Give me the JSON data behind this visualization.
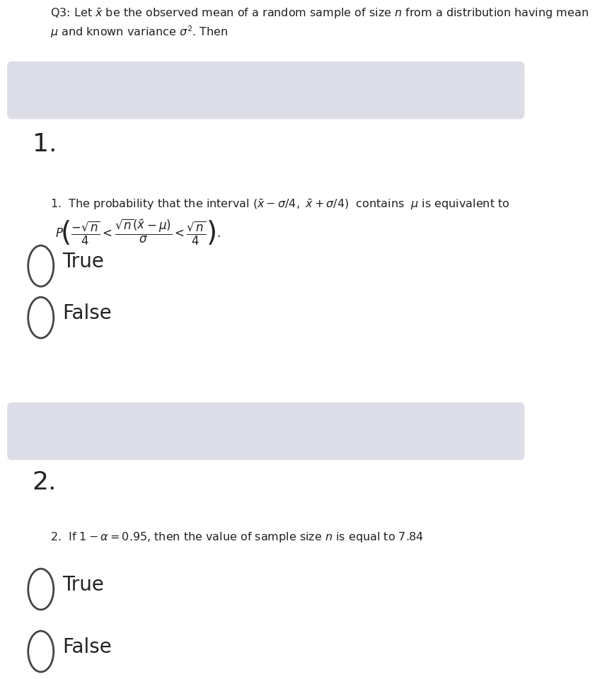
{
  "bg_color": "#ffffff",
  "panel_color": "#dddde8",
  "text_color": "#222222",
  "header_line1": "Q3: Let $\\bar{x}$ be the observed mean of a random sample of size $n$ from a distribution having mean",
  "header_line2": "$\\mu$ and known variance $\\sigma^2$. Then",
  "q1_number": "1.",
  "q1_text": "1.  The probability that the interval $(\\bar{x} - \\sigma/4,\\ \\bar{x} + \\sigma/4)$  contains  $\\mu$ is equivalent to",
  "q1_formula": "$P\\!\\left(\\dfrac{-\\sqrt{n}}{4} < \\dfrac{\\sqrt{n}(\\bar{x}-\\mu)}{\\sigma} < \\dfrac{\\sqrt{n}}{4}\\right).$",
  "q1_true": "True",
  "q1_false": "False",
  "q2_number": "2.",
  "q2_text": "2.  If $1 - \\alpha = 0.95$, then the value of sample size $n$ is equal to 7.84",
  "q2_true": "True",
  "q2_false": "False",
  "header_fontsize": 11.5,
  "body_fontsize": 11.5,
  "number_fontsize": 26,
  "option_fontsize": 20,
  "formula_fontsize": 12
}
